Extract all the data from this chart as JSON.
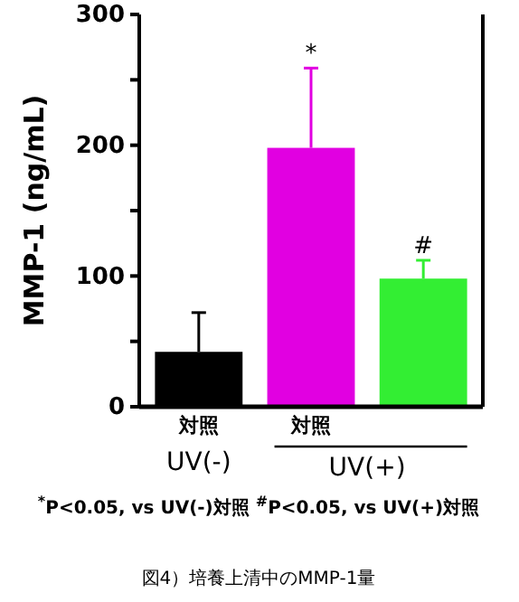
{
  "chart_data": {
    "type": "bar",
    "ylabel": "MMP-1 (ng/mL)",
    "categories": [
      "対照",
      "対照",
      null
    ],
    "values": [
      42,
      198,
      98
    ],
    "colors": [
      "#000000",
      "#e100e1",
      "#33ee33"
    ],
    "errors": [
      30,
      61,
      14
    ],
    "ylim": [
      0,
      300
    ],
    "yticks": [
      0,
      {
        "value": 50,
        "label": null
      },
      100,
      {
        "value": 150,
        "label": null
      },
      200,
      {
        "value": 250,
        "label": null
      },
      300
    ],
    "grid": false,
    "annotations": [
      "UV(-)",
      "UV(+)",
      "$^{*}$P<0.05, vs UV(-)対照  $^{#}$P<0.05, vs UV(+)対照",
      "図4）培養上清中のMMP-1量",
      {
        "text": "*",
        "y": 259
      },
      {
        "text": "#",
        "y": 112
      }
    ]
  }
}
